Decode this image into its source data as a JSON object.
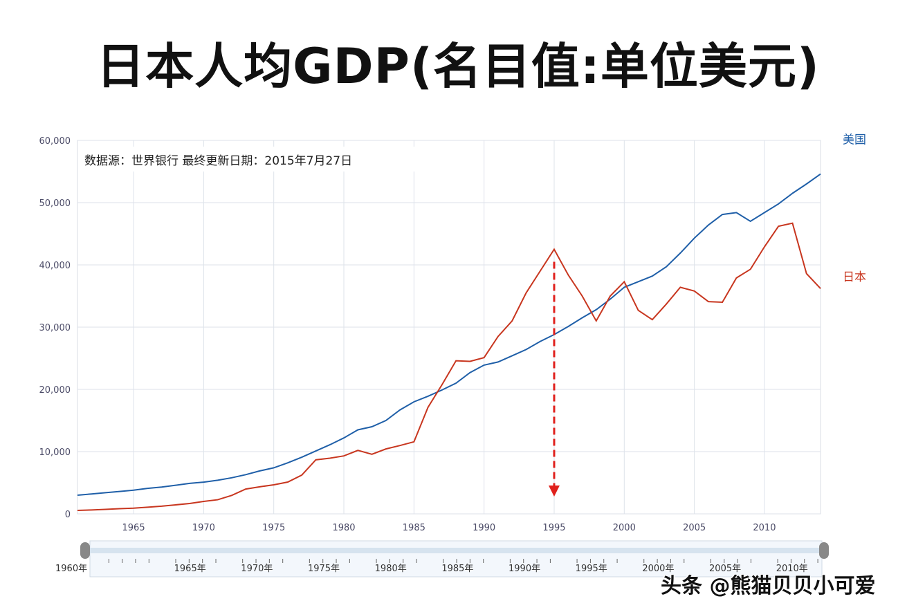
{
  "chart_data": {
    "type": "line",
    "title": "日本人均GDP(名目值:单位美元)",
    "source_note": "数据源：世界银行 最终更新日期：2015年7月27日",
    "xlim": [
      1961,
      2014
    ],
    "ylim": [
      0,
      60000
    ],
    "grid": true,
    "x_ticks": [
      1965,
      1970,
      1975,
      1980,
      1985,
      1990,
      1995,
      2000,
      2005,
      2010
    ],
    "y_ticks": [
      "0",
      "10,000",
      "20,000",
      "30,000",
      "40,000",
      "50,000",
      "60,000"
    ],
    "y_tick_values": [
      0,
      10000,
      20000,
      30000,
      40000,
      50000,
      60000
    ],
    "x": [
      1961,
      1962,
      1963,
      1964,
      1965,
      1966,
      1967,
      1968,
      1969,
      1970,
      1971,
      1972,
      1973,
      1974,
      1975,
      1976,
      1977,
      1978,
      1979,
      1980,
      1981,
      1982,
      1983,
      1984,
      1985,
      1986,
      1987,
      1988,
      1989,
      1990,
      1991,
      1992,
      1993,
      1994,
      1995,
      1996,
      1997,
      1998,
      1999,
      2000,
      2001,
      2002,
      2003,
      2004,
      2005,
      2006,
      2007,
      2008,
      2009,
      2010,
      2011,
      2012,
      2013,
      2014
    ],
    "series": [
      {
        "name": "美国",
        "color": "#1f5fa8",
        "values": [
          3000,
          3200,
          3400,
          3600,
          3800,
          4100,
          4300,
          4600,
          4900,
          5100,
          5400,
          5800,
          6300,
          6900,
          7400,
          8200,
          9100,
          10100,
          11100,
          12200,
          13500,
          14000,
          15000,
          16700,
          18000,
          18900,
          19900,
          21000,
          22700,
          23900,
          24400,
          25400,
          26400,
          27700,
          28800,
          30100,
          31500,
          32800,
          34500,
          36400,
          37300,
          38200,
          39700,
          41900,
          44300,
          46400,
          48100,
          48400,
          47000,
          48400,
          49800,
          51500,
          53000,
          54600
        ]
      },
      {
        "name": "日本",
        "color": "#c8361f",
        "values": [
          560,
          630,
          720,
          840,
          920,
          1070,
          1230,
          1450,
          1670,
          2000,
          2270,
          2970,
          3990,
          4350,
          4670,
          5110,
          6230,
          8680,
          8950,
          9310,
          10200,
          9580,
          10430,
          10980,
          11580,
          17110,
          20750,
          24600,
          24500,
          25100,
          28500,
          31000,
          35500,
          39000,
          42500,
          38400,
          35000,
          31000,
          35000,
          37300,
          32700,
          31200,
          33700,
          36400,
          35800,
          34100,
          34000,
          37900,
          39300,
          42900,
          46200,
          46700,
          38600,
          36200
        ]
      }
    ],
    "annotation": {
      "type": "dashed-arrow",
      "x": 1995,
      "color": "#e0201c"
    },
    "range_slider": {
      "range": [
        1960,
        2014
      ],
      "labels": [
        "1960年",
        "1965年",
        "1970年",
        "1975年",
        "1980年",
        "1985年",
        "1990年",
        "1995年",
        "2000年",
        "2005年",
        "2010年"
      ]
    }
  },
  "watermark": "头条 @熊猫贝贝小可爱"
}
